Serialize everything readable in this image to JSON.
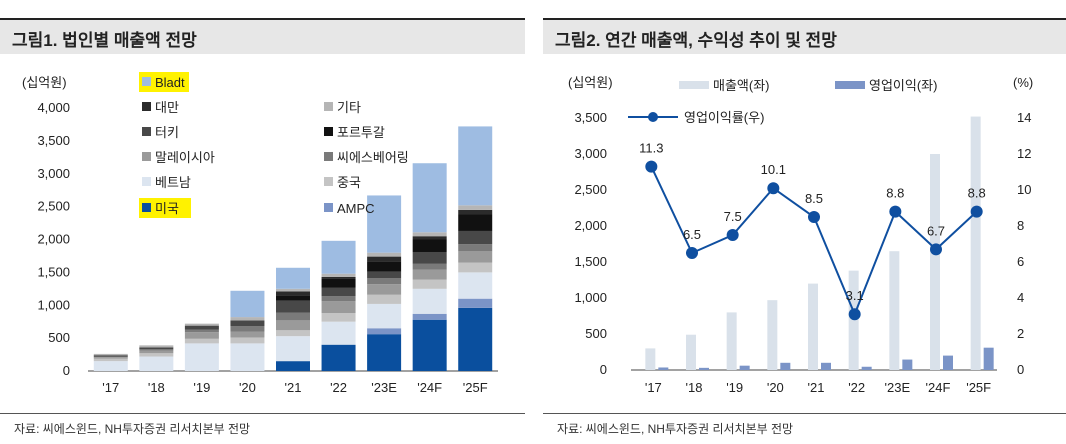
{
  "left": {
    "title": "그림1. 법인별 매출액 전망",
    "unit_label": "(십억원)",
    "source": "자료: 씨에스윈드, NH투자증권 리서치본부 전망",
    "chart_data": {
      "type": "bar",
      "stacked": true,
      "categories": [
        "'17",
        "'18",
        "'19",
        "'20",
        "'21",
        "'22",
        "'23E",
        "'24F",
        "'25F"
      ],
      "ylim": [
        0,
        4000
      ],
      "yticks": [
        "0",
        "500",
        "1,000",
        "1,500",
        "2,000",
        "2,500",
        "3,000",
        "3,500",
        "4,000"
      ],
      "legend_order": [
        "Bladt",
        "기타",
        "대만",
        "포르투갈",
        "터키",
        "씨에스베어링",
        "말레이시아",
        "중국",
        "베트남",
        "AMPC",
        "미국"
      ],
      "series": [
        {
          "name": "미국",
          "color": "#0a4f9e",
          "values": [
            0,
            0,
            0,
            0,
            150,
            400,
            560,
            780,
            960
          ]
        },
        {
          "name": "AMPC",
          "color": "#7b94c7",
          "values": [
            0,
            0,
            0,
            0,
            0,
            0,
            90,
            90,
            140
          ]
        },
        {
          "name": "베트남",
          "color": "#dce5f0",
          "values": [
            150,
            220,
            420,
            420,
            380,
            350,
            370,
            380,
            400
          ]
        },
        {
          "name": "중국",
          "color": "#c4c4c4",
          "values": [
            40,
            50,
            70,
            90,
            90,
            130,
            140,
            140,
            150
          ]
        },
        {
          "name": "말레이시아",
          "color": "#9a9a9a",
          "values": [
            20,
            40,
            100,
            90,
            150,
            180,
            160,
            150,
            170
          ]
        },
        {
          "name": "씨에스베어링",
          "color": "#7a7a7a",
          "values": [
            10,
            20,
            40,
            80,
            120,
            80,
            90,
            90,
            110
          ]
        },
        {
          "name": "터키",
          "color": "#484848",
          "values": [
            20,
            30,
            60,
            90,
            180,
            130,
            100,
            180,
            200
          ]
        },
        {
          "name": "포르투갈",
          "color": "#111111",
          "values": [
            0,
            0,
            0,
            0,
            80,
            130,
            160,
            190,
            250
          ]
        },
        {
          "name": "대만",
          "color": "#2b2b2b",
          "values": [
            0,
            0,
            0,
            0,
            60,
            30,
            70,
            50,
            70
          ]
        },
        {
          "name": "기타",
          "color": "#b5b5b5",
          "values": [
            20,
            30,
            30,
            50,
            40,
            50,
            60,
            60,
            70
          ]
        },
        {
          "name": "Bladt",
          "color": "#9ebce2",
          "values": [
            0,
            0,
            0,
            400,
            320,
            500,
            870,
            1050,
            1200
          ]
        }
      ]
    }
  },
  "right": {
    "title": "그림2. 연간 매출액, 수익성 추이 및 전망",
    "unit_left": "(십억원)",
    "unit_right": "(%)",
    "source": "자료: 씨에스윈드, NH투자증권 리서치본부 전망",
    "chart_data": {
      "type": "bar",
      "categories": [
        "'17",
        "'18",
        "'19",
        "'20",
        "'21",
        "'22",
        "'23E",
        "'24F",
        "'25F"
      ],
      "ylim_left": [
        0,
        3500
      ],
      "ylim_right": [
        0,
        14
      ],
      "yticks_left": [
        "0",
        "500",
        "1,000",
        "1,500",
        "2,000",
        "2,500",
        "3,000",
        "3,500"
      ],
      "yticks_right": [
        "0",
        "2",
        "4",
        "6",
        "8",
        "10",
        "12",
        "14"
      ],
      "series": [
        {
          "name": "매출액(좌)",
          "type": "bar",
          "axis": "left",
          "color": "#d9e1ea",
          "values": [
            300,
            490,
            800,
            970,
            1200,
            1380,
            1650,
            3000,
            3520
          ]
        },
        {
          "name": "영업이익(좌)",
          "type": "bar",
          "axis": "left",
          "color": "#7b94c7",
          "values": [
            35,
            30,
            60,
            100,
            100,
            45,
            145,
            200,
            310
          ]
        },
        {
          "name": "영업이익률(우)",
          "type": "line",
          "axis": "right",
          "color": "#0f4fa0",
          "values": [
            11.3,
            6.5,
            7.5,
            10.1,
            8.5,
            3.1,
            8.8,
            6.7,
            8.8
          ],
          "labels": [
            "11.3",
            "6.5",
            "7.5",
            "10.1",
            "8.5",
            "3.1",
            "8.8",
            "6.7",
            "8.8"
          ]
        }
      ]
    }
  },
  "highlight_color": "#fff200"
}
